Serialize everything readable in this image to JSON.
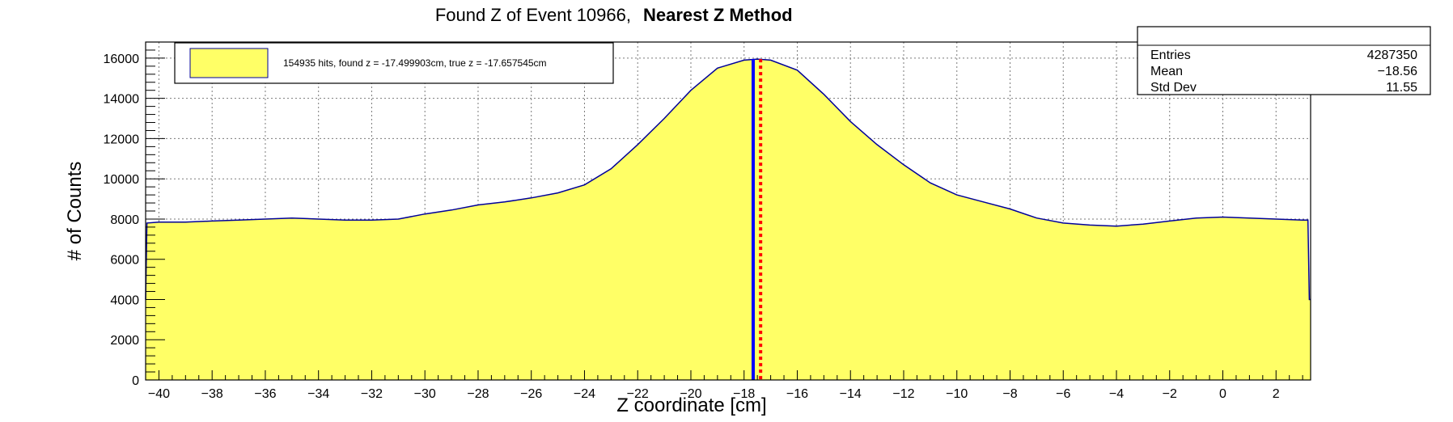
{
  "chart_data": {
    "type": "histogram",
    "title": "Found Z of Event 10966,",
    "title_bold": "Nearest Z Method",
    "xlabel": "Z coordinate [cm]",
    "ylabel": "# of Counts",
    "xlim": [
      -40.5,
      3.3
    ],
    "ylim": [
      0,
      16800
    ],
    "x_ticks": [
      -40,
      -38,
      -36,
      -34,
      -32,
      -30,
      -28,
      -26,
      -24,
      -22,
      -20,
      -18,
      -16,
      -14,
      -12,
      -10,
      -8,
      -6,
      -4,
      -2,
      0,
      2
    ],
    "y_ticks": [
      0,
      2000,
      4000,
      6000,
      8000,
      10000,
      12000,
      14000,
      16000
    ],
    "grid": true,
    "fill_color": "#ffff66",
    "line_color": "#000099",
    "curve_points": [
      [
        -40.5,
        4000
      ],
      [
        -40.45,
        7800
      ],
      [
        -40,
        7850
      ],
      [
        -39,
        7850
      ],
      [
        -38,
        7900
      ],
      [
        -37,
        7950
      ],
      [
        -36,
        8000
      ],
      [
        -35,
        8050
      ],
      [
        -34,
        8000
      ],
      [
        -33,
        7950
      ],
      [
        -32,
        7950
      ],
      [
        -31,
        8000
      ],
      [
        -30,
        8250
      ],
      [
        -29,
        8450
      ],
      [
        -28,
        8700
      ],
      [
        -27,
        8850
      ],
      [
        -26,
        9050
      ],
      [
        -25,
        9300
      ],
      [
        -24,
        9700
      ],
      [
        -23,
        10500
      ],
      [
        -22,
        11700
      ],
      [
        -21,
        13000
      ],
      [
        -20,
        14400
      ],
      [
        -19,
        15500
      ],
      [
        -18,
        15900
      ],
      [
        -17.5,
        15950
      ],
      [
        -17,
        15900
      ],
      [
        -16,
        15400
      ],
      [
        -15,
        14200
      ],
      [
        -14,
        12850
      ],
      [
        -13,
        11700
      ],
      [
        -12,
        10700
      ],
      [
        -11,
        9800
      ],
      [
        -10,
        9200
      ],
      [
        -9,
        8850
      ],
      [
        -8,
        8500
      ],
      [
        -7,
        8050
      ],
      [
        -6,
        7800
      ],
      [
        -5,
        7700
      ],
      [
        -4,
        7650
      ],
      [
        -3,
        7750
      ],
      [
        -2,
        7900
      ],
      [
        -1,
        8050
      ],
      [
        0,
        8100
      ],
      [
        1,
        8050
      ],
      [
        2,
        8000
      ],
      [
        3,
        7950
      ],
      [
        3.2,
        7950
      ],
      [
        3.25,
        4000
      ],
      [
        3.3,
        4000
      ]
    ],
    "found_z": -17.499903,
    "true_z": -17.657545,
    "found_line_color": "#ff0000",
    "true_line_color": "#0000ff",
    "legend": {
      "entry": "154935 hits, found z = -17.499903cm, true z = -17.657545cm",
      "placement": "top-left"
    },
    "stats": {
      "placement": "top-right",
      "rows": [
        {
          "label": "Entries",
          "value": "4287350"
        },
        {
          "label": "Mean",
          "value": "−18.56"
        },
        {
          "label": "Std Dev",
          "value": "11.55"
        }
      ]
    }
  }
}
